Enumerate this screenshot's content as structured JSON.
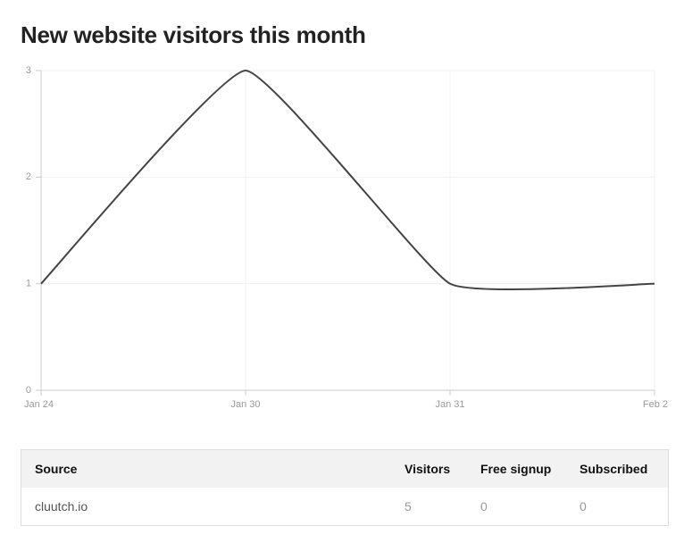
{
  "chart_data": {
    "type": "line",
    "title": "New website visitors this month",
    "categories": [
      "Jan 24",
      "Jan 30",
      "Jan 31",
      "Feb 2"
    ],
    "values": [
      1,
      3,
      1,
      1
    ],
    "color": "#444444",
    "ylim": [
      0,
      3
    ],
    "yticks": [
      0,
      1,
      2,
      3
    ],
    "grid": true
  },
  "table": {
    "headers": [
      "Source",
      "Visitors",
      "Free signup",
      "Subscribed"
    ],
    "rows": [
      [
        "cluutch.io",
        5,
        0,
        0
      ]
    ]
  }
}
